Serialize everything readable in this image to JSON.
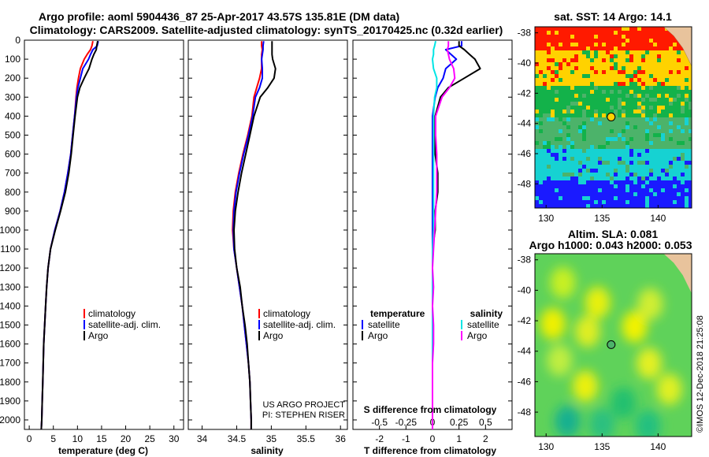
{
  "title": {
    "line1": "Argo profile: aoml 5904436_87 25-Apr-2017 43.57S 135.81E (DM data)",
    "line2": "Climatology: CARS2009. Satellite-adjusted climatology: synTS_20170425.nc (0.32d earlier)"
  },
  "colors": {
    "climatology": "#ff0000",
    "satellite": "#0000ff",
    "argo": "#000000",
    "salinity_satellite": "#00e5e5",
    "salinity_argo": "#ff00ff"
  },
  "depth_axis": {
    "range": [
      0,
      2050
    ],
    "ticks": [
      0,
      100,
      200,
      300,
      400,
      500,
      600,
      700,
      800,
      900,
      1000,
      1100,
      1200,
      1300,
      1400,
      1500,
      1600,
      1700,
      1800,
      1900,
      2000
    ],
    "tick_labels": [
      "0",
      "100",
      "200",
      "300",
      "400",
      "500",
      "600",
      "700",
      "800",
      "900",
      "1000",
      "1100",
      "1200",
      "1300",
      "1400",
      "1500",
      "1600",
      "1700",
      "1800",
      "1900",
      "2000"
    ]
  },
  "panels": {
    "temperature": {
      "xlabel": "temperature (deg C)",
      "xlim": [
        -1,
        32
      ],
      "xticks": [
        0,
        5,
        10,
        15,
        20,
        25,
        30
      ],
      "xtick_labels": [
        "0",
        "5",
        "10",
        "15",
        "20",
        "25",
        "30"
      ],
      "legend": [
        "climatology",
        "satellite-adj. clim.",
        "Argo"
      ]
    },
    "salinity": {
      "xlabel": "salinity",
      "xlim": [
        33.8,
        36.1
      ],
      "xticks": [
        34,
        34.5,
        35,
        35.5,
        36
      ],
      "xtick_labels": [
        "34",
        "34.5",
        "35",
        "35.5",
        "36"
      ],
      "legend": [
        "climatology",
        "satellite-adj. clim.",
        "Argo"
      ],
      "credit_line1": "US ARGO PROJECT",
      "credit_line2": "PI: STEPHEN RISER"
    },
    "difference": {
      "xlabel": "T difference from climatology",
      "xlim": [
        -3,
        3
      ],
      "xticks": [
        -2,
        -1,
        0,
        1,
        2
      ],
      "xtick_labels": [
        "-2",
        "-1",
        "0",
        "1",
        "2"
      ],
      "s_label": "S difference from climatology",
      "s_ticks": [
        -0.5,
        -0.25,
        0,
        0.25,
        0.5
      ],
      "s_tick_labels": [
        "-0.5",
        "-0.25",
        "0",
        "0.25",
        "0.5"
      ],
      "legend_temperature_title": "temperature",
      "legend_salinity_title": "salinity",
      "legend_items": [
        "satellite",
        "Argo"
      ]
    }
  },
  "chart_data": [
    {
      "type": "line",
      "name": "temperature profile",
      "xlabel": "temperature (deg C)",
      "ylabel": "depth",
      "ylim": [
        0,
        2050
      ],
      "y": [
        5,
        30,
        50,
        75,
        100,
        150,
        200,
        250,
        300,
        400,
        500,
        600,
        700,
        800,
        900,
        1000,
        1100,
        1200,
        1300,
        1400,
        1500,
        1600,
        1700,
        1800,
        1900,
        2000,
        2050
      ],
      "series": [
        {
          "name": "climatology",
          "values": [
            13.2,
            13.0,
            12.7,
            12.0,
            11.4,
            10.6,
            10.2,
            9.9,
            9.7,
            9.4,
            9.0,
            8.6,
            8.0,
            7.3,
            6.4,
            5.3,
            4.4,
            3.9,
            3.6,
            3.4,
            3.2,
            3.0,
            2.9,
            2.8,
            2.7,
            2.6,
            2.5
          ]
        },
        {
          "name": "satellite-adj. clim.",
          "values": [
            14.3,
            14.1,
            13.2,
            12.7,
            12.3,
            11.1,
            10.6,
            10.1,
            9.8,
            9.4,
            9.0,
            8.6,
            8.0,
            7.3,
            6.4,
            5.3,
            4.4,
            3.9,
            3.6,
            3.4,
            3.2,
            3.0,
            2.9,
            2.8,
            2.7,
            2.6,
            2.5
          ]
        },
        {
          "name": "Argo",
          "values": [
            14.2,
            14.0,
            13.9,
            13.4,
            13.0,
            12.4,
            11.4,
            10.5,
            10.0,
            9.5,
            9.1,
            8.7,
            8.2,
            7.5,
            6.5,
            5.4,
            4.4,
            3.9,
            3.6,
            3.4,
            3.2,
            3.0,
            2.9,
            2.8,
            2.7,
            2.6,
            2.5
          ]
        }
      ]
    },
    {
      "type": "line",
      "name": "salinity profile",
      "xlabel": "salinity",
      "ylabel": "depth",
      "ylim": [
        0,
        2050
      ],
      "y": [
        5,
        30,
        50,
        75,
        100,
        150,
        200,
        250,
        300,
        400,
        500,
        600,
        700,
        800,
        900,
        1000,
        1100,
        1200,
        1300,
        1400,
        1500,
        1600,
        1700,
        1800,
        1900,
        2000,
        2050
      ],
      "series": [
        {
          "name": "climatology",
          "values": [
            34.86,
            34.86,
            34.87,
            34.86,
            34.86,
            34.86,
            34.83,
            34.79,
            34.75,
            34.72,
            34.66,
            34.59,
            34.53,
            34.48,
            34.45,
            34.44,
            34.46,
            34.5,
            34.54,
            34.58,
            34.61,
            34.64,
            34.67,
            34.69,
            34.7,
            34.71,
            34.71
          ]
        },
        {
          "name": "satellite-adj. clim.",
          "values": [
            34.89,
            34.88,
            34.88,
            34.87,
            34.86,
            34.87,
            34.87,
            34.83,
            34.77,
            34.73,
            34.67,
            34.6,
            34.54,
            34.49,
            34.46,
            34.45,
            34.46,
            34.5,
            34.54,
            34.58,
            34.61,
            34.64,
            34.67,
            34.69,
            34.7,
            34.71,
            34.71
          ]
        },
        {
          "name": "Argo",
          "values": [
            35.01,
            35.01,
            35.01,
            35.01,
            35.02,
            35.06,
            35.04,
            34.95,
            34.84,
            34.75,
            34.69,
            34.63,
            34.57,
            34.52,
            34.48,
            34.46,
            34.47,
            34.5,
            34.55,
            34.58,
            34.62,
            34.65,
            34.67,
            34.69,
            34.7,
            34.71,
            34.71
          ]
        }
      ]
    },
    {
      "type": "line",
      "name": "difference from climatology",
      "xlabel": "T difference from climatology",
      "x2label": "S difference from climatology",
      "ylabel": "depth",
      "ylim": [
        0,
        2050
      ],
      "y": [
        5,
        30,
        50,
        75,
        100,
        150,
        200,
        250,
        300,
        400,
        500,
        600,
        700,
        800,
        900,
        1000,
        1100,
        1200,
        1300,
        1400,
        1500,
        1600,
        1700,
        1800,
        1900,
        2000,
        2050
      ],
      "series": [
        {
          "name": "temperature satellite",
          "axis": "T",
          "values": [
            1.1,
            1.1,
            0.5,
            0.7,
            0.9,
            0.5,
            0.4,
            0.2,
            0.1,
            0.0,
            0.0,
            0.0,
            0.0,
            0.0,
            0.0,
            0.0,
            0.0,
            0.0,
            0.0,
            0.0,
            0.0,
            0.0,
            0.0,
            0.0,
            0.0,
            0.0,
            0.0
          ]
        },
        {
          "name": "temperature Argo",
          "axis": "T",
          "values": [
            1.0,
            1.0,
            1.2,
            1.4,
            1.6,
            1.8,
            1.2,
            0.6,
            0.3,
            0.1,
            0.1,
            0.1,
            0.2,
            0.2,
            0.1,
            0.1,
            0.0,
            0.0,
            0.0,
            0.0,
            0.0,
            0.0,
            0.0,
            0.0,
            0.0,
            0.0,
            0.0
          ]
        },
        {
          "name": "salinity satellite",
          "axis": "S",
          "values": [
            0.03,
            0.02,
            0.01,
            0.01,
            0.0,
            0.01,
            0.04,
            0.04,
            0.02,
            0.01,
            0.01,
            0.01,
            0.01,
            0.01,
            0.01,
            0.01,
            0.0,
            0.0,
            0.0,
            0.0,
            0.0,
            0.0,
            0.0,
            0.0,
            0.0,
            0.0,
            0.0
          ]
        },
        {
          "name": "salinity Argo",
          "axis": "S",
          "values": [
            0.15,
            0.15,
            0.14,
            0.15,
            0.16,
            0.2,
            0.21,
            0.16,
            0.09,
            0.03,
            0.03,
            0.04,
            0.04,
            0.04,
            0.03,
            0.02,
            0.01,
            0.0,
            0.01,
            0.0,
            0.01,
            0.01,
            0.0,
            0.0,
            0.0,
            0.0,
            0.0
          ]
        }
      ]
    },
    {
      "type": "heatmap",
      "name": "satellite SST map",
      "title": "sat. SST: 14 Argo: 14.1",
      "xlim": [
        129,
        143
      ],
      "ylim": [
        -49.6,
        -37.6
      ],
      "xticks": [
        130,
        135,
        140
      ],
      "yticks": [
        -38,
        -40,
        -42,
        -44,
        -46,
        -48
      ],
      "xtick_labels": [
        "130",
        "135",
        "140"
      ],
      "ytick_labels": [
        "-38",
        "-40",
        "-42",
        "-44",
        "-46",
        "-48"
      ],
      "argo_position": [
        135.81,
        -43.57
      ],
      "bands": [
        {
          "from_lat": -37.6,
          "to_lat": -39.2,
          "color": "#ff1a00"
        },
        {
          "from_lat": -39.2,
          "to_lat": -41.6,
          "color": "#ffd200"
        },
        {
          "from_lat": -41.6,
          "to_lat": -43.6,
          "color": "#13b24a"
        },
        {
          "from_lat": -43.6,
          "to_lat": -45.6,
          "color": "#4cb36a"
        },
        {
          "from_lat": -45.6,
          "to_lat": -47.8,
          "color": "#16d2d2"
        },
        {
          "from_lat": -47.8,
          "to_lat": -49.6,
          "color": "#1a1aff"
        }
      ]
    },
    {
      "type": "heatmap",
      "name": "altimetry SLA map",
      "title1": "Altim. SLA: 0.081",
      "title2": "Argo h1000: 0.043 h2000: 0.053",
      "xlim": [
        129,
        143
      ],
      "ylim": [
        -49.6,
        -37.6
      ],
      "xticks": [
        130,
        135,
        140
      ],
      "yticks": [
        -38,
        -40,
        -42,
        -44,
        -46,
        -48
      ],
      "xtick_labels": [
        "130",
        "135",
        "140"
      ],
      "ytick_labels": [
        "-38",
        "-40",
        "-42",
        "-44",
        "-46",
        "-48"
      ],
      "argo_position": [
        135.81,
        -43.57
      ],
      "blobs": [
        {
          "lon": 131.5,
          "lat": -39.5,
          "color": "#c8f020"
        },
        {
          "lon": 134.6,
          "lat": -40.8,
          "color": "#e8f010"
        },
        {
          "lon": 139.3,
          "lat": -40.9,
          "color": "#d0ee30"
        },
        {
          "lon": 130.6,
          "lat": -42.2,
          "color": "#f0f000"
        },
        {
          "lon": 137.9,
          "lat": -42.4,
          "color": "#f2f200"
        },
        {
          "lon": 133.7,
          "lat": -42.7,
          "color": "#dfee20"
        },
        {
          "lon": 131.2,
          "lat": -44.6,
          "color": "#c0ee40"
        },
        {
          "lon": 139.2,
          "lat": -44.8,
          "color": "#e4f020"
        },
        {
          "lon": 133.5,
          "lat": -46.3,
          "color": "#ecf010"
        },
        {
          "lon": 141.0,
          "lat": -46.5,
          "color": "#e0f020"
        },
        {
          "lon": 136.9,
          "lat": -47.4,
          "color": "#22c070"
        },
        {
          "lon": 131.9,
          "lat": -48.6,
          "color": "#16b090"
        },
        {
          "lon": 139.1,
          "lat": -48.9,
          "color": "#20c080"
        },
        {
          "lon": 135.0,
          "lat": -48.8,
          "color": "#2cc080"
        }
      ]
    }
  ],
  "maps": {
    "sst_title": "sat. SST: 14 Argo: 14.1",
    "sla_title1": "Altim. SLA: 0.081",
    "sla_title2": "Argo h1000: 0.043 h2000: 0.053"
  },
  "watermark": "©IMOS 12-Dec-2018 21:25:08"
}
